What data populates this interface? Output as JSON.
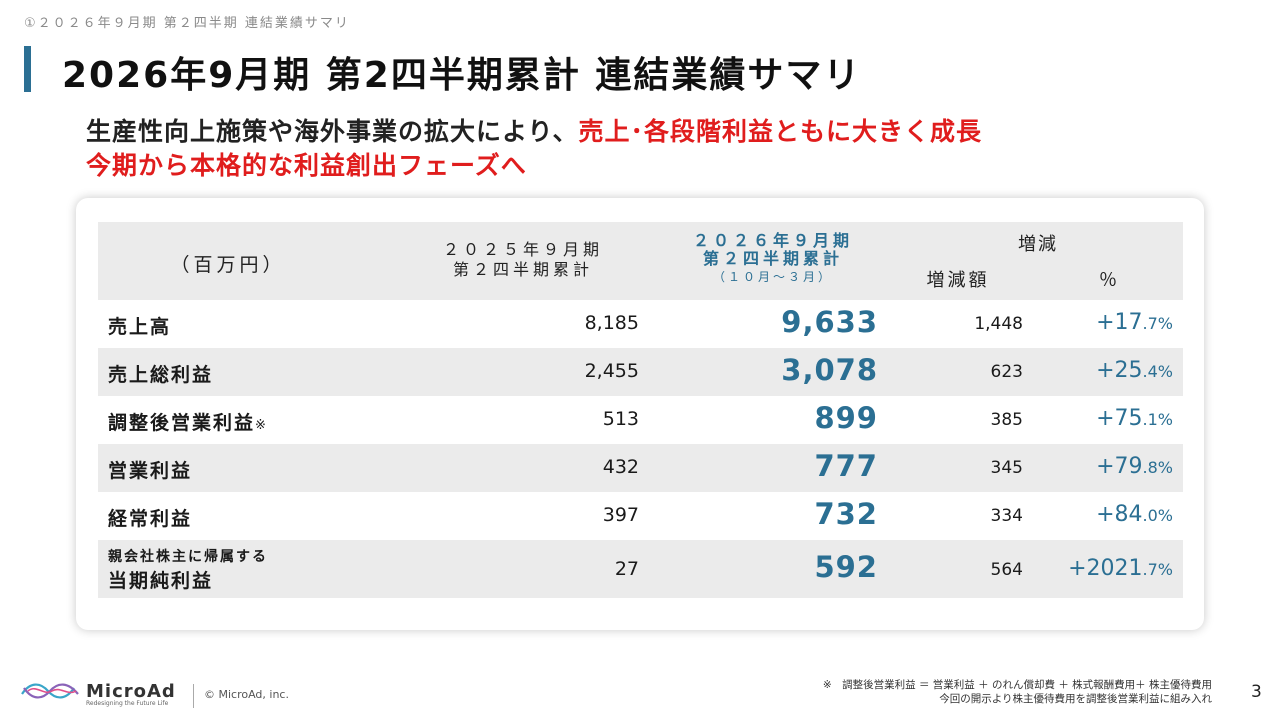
{
  "breadcrumb": "①２０２６年９月期 第２四半期 連結業績サマリ",
  "title": "2026年9月期 第2四半期累計 連結業績サマリ",
  "subtitle": {
    "line1_normal": "生産性向上施策や海外事業の拡大により、",
    "line1_red": "売上･各段階利益ともに大きく成長",
    "line2_red": "今期から本格的な利益創出フェーズへ"
  },
  "table": {
    "unit_label": "（百万円）",
    "prev_header_line1": "２０２５年９月期",
    "prev_header_line2": "第２四半期累計",
    "cur_header_line1": "２０２６年９月期",
    "cur_header_line2": "第２四半期累計",
    "cur_header_line3": "（１０月～３月）",
    "diff_header": "増減",
    "diff_amount_header": "増減額",
    "diff_pct_header": "％",
    "rows": [
      {
        "label": "売上高",
        "prev": "8,185",
        "cur": "9,633",
        "diff": "1,448",
        "pct_main": "+17",
        "pct_dec": ".7%"
      },
      {
        "label": "売上総利益",
        "prev": "2,455",
        "cur": "3,078",
        "diff": "623",
        "pct_main": "+25",
        "pct_dec": ".4%"
      },
      {
        "label": "調整後営業利益",
        "note": "※",
        "prev": "513",
        "cur": "899",
        "diff": "385",
        "pct_main": "+75",
        "pct_dec": ".1%"
      },
      {
        "label": "営業利益",
        "prev": "432",
        "cur": "777",
        "diff": "345",
        "pct_main": "+79",
        "pct_dec": ".8%"
      },
      {
        "label": "経常利益",
        "prev": "397",
        "cur": "732",
        "diff": "334",
        "pct_main": "+84",
        "pct_dec": ".0%"
      },
      {
        "label_line1": "親会社株主に帰属する",
        "label_line2": "当期純利益",
        "prev": "27",
        "cur": "592",
        "diff": "564",
        "pct_main": "+2021",
        "pct_dec": ".7%"
      }
    ]
  },
  "footer": {
    "brand": "MicroAd",
    "tagline": "Redesigning the Future Life",
    "copyright": "© MicroAd, inc.",
    "note_line1": "※　調整後営業利益 ＝ 営業利益 ＋ のれん償却費 ＋ 株式報酬費用＋ 株主優待費用",
    "note_line2": "今回の開示より株主優待費用を調整後営業利益に組み入れ",
    "page_number": "3"
  },
  "colors": {
    "accent": "#2b6f93",
    "emphasis": "#e01d1d",
    "row_shade": "#ebebeb"
  }
}
